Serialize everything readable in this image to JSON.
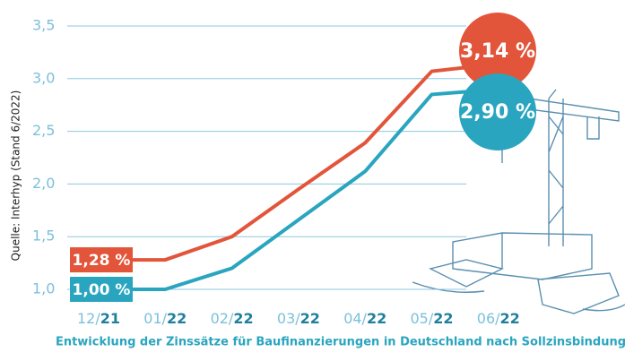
{
  "chart_data": {
    "type": "line",
    "title": "Entwicklung der Zinssätze für Baufinanzierungen in Deutschland nach Sollzinsbindung",
    "source": "Quelle: Interhyp (Stand 6/2022)",
    "categories": [
      "12/21",
      "01/22",
      "02/22",
      "03/22",
      "04/22",
      "05/22",
      "06/22"
    ],
    "series": [
      {
        "color": "#e2553a",
        "values": [
          1.28,
          1.28,
          1.5,
          1.95,
          2.39,
          3.07,
          3.14
        ],
        "value_labels": [
          "1,28 %",
          null,
          null,
          null,
          null,
          null,
          "3,14 %"
        ]
      },
      {
        "color": "#2aa5bf",
        "values": [
          1.0,
          1.0,
          1.2,
          1.66,
          2.12,
          2.85,
          2.9
        ],
        "value_labels": [
          "1,00 %",
          null,
          null,
          null,
          null,
          null,
          "2,90 %"
        ]
      }
    ],
    "ylim": [
      0.9,
      3.55
    ],
    "yticks": [
      {
        "value": 1.0,
        "label": "1,0"
      },
      {
        "value": 1.5,
        "label": "1,5"
      },
      {
        "value": 2.0,
        "label": "2,0"
      },
      {
        "value": 2.5,
        "label": "2,5"
      },
      {
        "value": 3.0,
        "label": "3,0"
      },
      {
        "value": 3.5,
        "label": "3,5"
      }
    ],
    "grid": true
  }
}
